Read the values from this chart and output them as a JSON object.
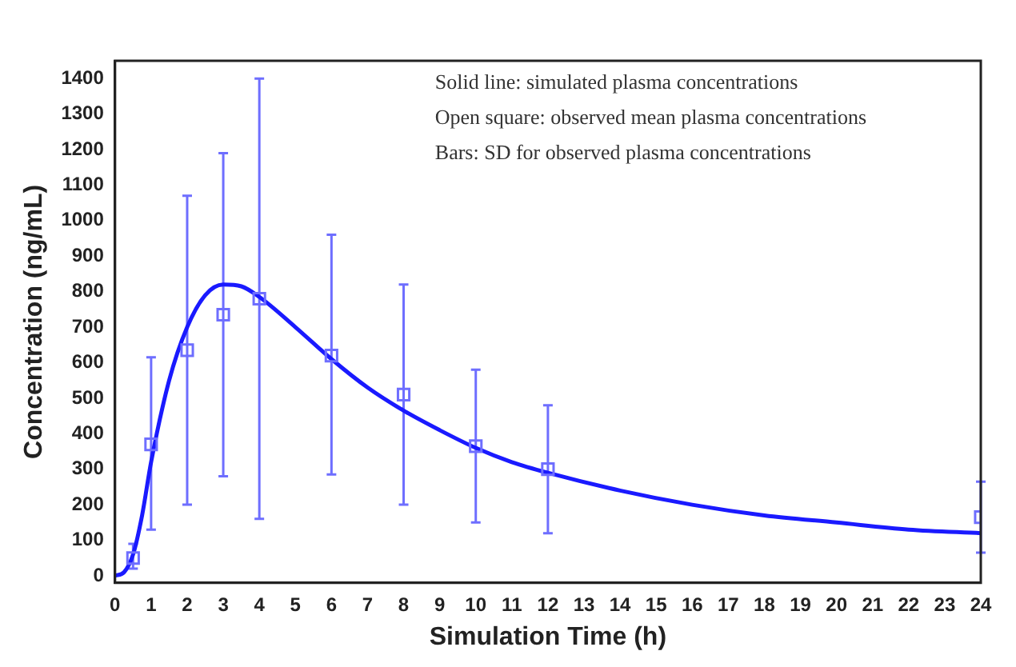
{
  "chart_data": {
    "type": "line",
    "xlabel": "Simulation Time (h)",
    "ylabel": "Concentration (ng/mL)",
    "xlim": [
      0,
      24
    ],
    "xticks": [
      0,
      1,
      2,
      3,
      4,
      5,
      6,
      7,
      8,
      9,
      10,
      11,
      12,
      13,
      14,
      15,
      16,
      17,
      18,
      19,
      20,
      21,
      22,
      23,
      24
    ],
    "ylim": [
      -20,
      1450
    ],
    "yticks": [
      0,
      100,
      200,
      300,
      400,
      500,
      600,
      700,
      800,
      900,
      1000,
      1100,
      1200,
      1300,
      1400
    ],
    "grid": false,
    "legend": false,
    "annotations": [
      "Solid line: simulated plasma concentrations",
      "Open square: observed mean plasma concentrations",
      "Bars: SD for observed plasma concentrations"
    ],
    "series": [
      {
        "color": "#1a1aff",
        "marker": "none",
        "line_style": "solid",
        "x": [
          0,
          0.25,
          0.5,
          0.75,
          1,
          1.5,
          2,
          2.5,
          3,
          3.5,
          4,
          5,
          6,
          7,
          8,
          9,
          10,
          11,
          12,
          14,
          16,
          18,
          20,
          22,
          24
        ],
        "values": [
          0,
          10,
          60,
          170,
          320,
          550,
          700,
          790,
          820,
          815,
          785,
          700,
          610,
          530,
          465,
          410,
          360,
          320,
          290,
          240,
          200,
          170,
          150,
          130,
          120
        ]
      },
      {
        "type": "scatter",
        "color": "#6e6eff",
        "marker": "square",
        "x": [
          0.5,
          1,
          2,
          3,
          4,
          6,
          8,
          10,
          12,
          24
        ],
        "values": [
          50,
          370,
          635,
          735,
          780,
          620,
          510,
          365,
          300,
          165
        ],
        "errors": [
          [
            20,
            90
          ],
          [
            130,
            615
          ],
          [
            200,
            1070
          ],
          [
            280,
            1190
          ],
          [
            160,
            1400
          ],
          [
            285,
            960
          ],
          [
            200,
            820
          ],
          [
            150,
            580
          ],
          [
            120,
            480
          ],
          [
            65,
            265
          ]
        ]
      }
    ]
  }
}
